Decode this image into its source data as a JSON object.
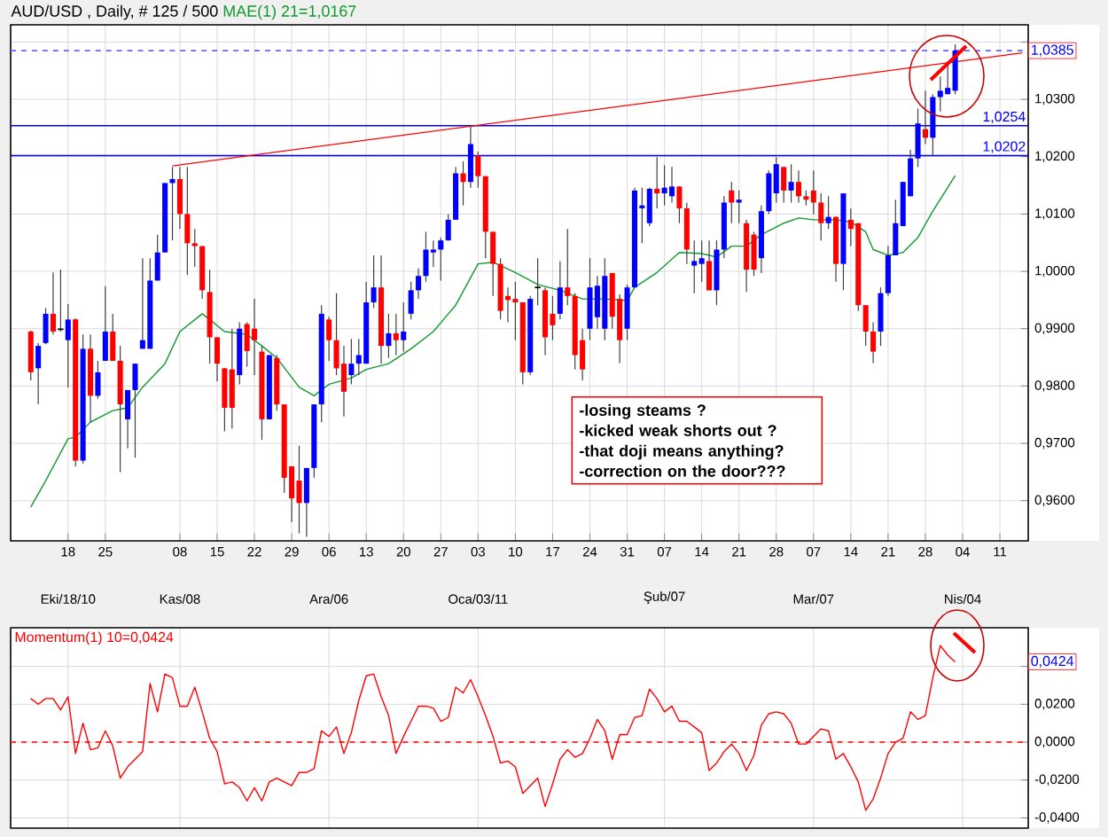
{
  "chart_data": [
    {
      "type": "candlestick",
      "title": "AUD/USD , Daily, # 125 / 500",
      "categories": [
        null,
        null,
        null,
        null,
        null,
        "18",
        null,
        null,
        null,
        null,
        "25",
        null,
        null,
        null,
        null,
        null,
        null,
        null,
        null,
        null,
        "08",
        null,
        null,
        null,
        null,
        "15",
        null,
        null,
        null,
        null,
        "22",
        null,
        null,
        null,
        null,
        "29",
        null,
        null,
        null,
        null,
        "06",
        null,
        null,
        null,
        null,
        "13",
        null,
        null,
        null,
        null,
        "20",
        null,
        null,
        null,
        null,
        "27",
        null,
        null,
        null,
        null,
        "03",
        null,
        null,
        null,
        null,
        "10",
        null,
        null,
        null,
        null,
        "17",
        null,
        null,
        null,
        null,
        "24",
        null,
        null,
        null,
        null,
        "31",
        null,
        null,
        null,
        null,
        "07",
        null,
        null,
        null,
        null,
        "14",
        null,
        null,
        null,
        null,
        "21",
        null,
        null,
        null,
        null,
        "28",
        null,
        null,
        null,
        null,
        "07",
        null,
        null,
        null,
        null,
        "14",
        null,
        null,
        null,
        null,
        "21",
        null,
        null,
        null,
        null,
        "28",
        null,
        null,
        null,
        null,
        "04",
        null,
        null,
        null,
        null,
        "11",
        null,
        null,
        null
      ],
      "ohlc": [
        [
          0.9895,
          0.9897,
          0.981,
          0.9824
        ],
        [
          0.9831,
          0.9875,
          0.9768,
          0.987
        ],
        [
          0.9875,
          0.9936,
          0.9873,
          0.9926
        ],
        [
          0.9926,
          0.9998,
          0.989,
          0.9895
        ],
        [
          0.9899,
          1.0003,
          0.9895,
          0.9899
        ],
        [
          0.988,
          0.9943,
          0.9798,
          0.9916
        ],
        [
          0.9916,
          0.9918,
          0.966,
          0.967
        ],
        [
          0.967,
          0.989,
          0.9665,
          0.9865
        ],
        [
          0.9865,
          0.989,
          0.9737,
          0.9783
        ],
        [
          0.9783,
          0.9844,
          0.9778,
          0.9824
        ],
        [
          0.9844,
          0.9974,
          0.9844,
          0.9895
        ],
        [
          0.9895,
          0.9926,
          0.9844,
          0.9844
        ],
        [
          0.9844,
          0.987,
          0.965,
          0.9768
        ],
        [
          0.9742,
          0.9793,
          0.9691,
          0.9793
        ],
        [
          0.9793,
          0.9839,
          0.9675,
          0.9839
        ],
        [
          0.9865,
          1.0023,
          0.9865,
          0.988
        ],
        [
          0.9865,
          1.0023,
          0.9865,
          0.9984
        ],
        [
          0.9984,
          1.0064,
          0.9984,
          1.0033
        ],
        [
          1.0033,
          1.0154,
          1.0033,
          1.0154
        ],
        [
          1.0154,
          1.0182,
          1.0054,
          1.0161
        ],
        [
          1.0161,
          1.0182,
          1.0074,
          1.01
        ],
        [
          1.01,
          1.0182,
          0.9994,
          1.0049
        ],
        [
          1.0049,
          1.0074,
          1.0008,
          1.0044
        ],
        [
          1.0044,
          1.0044,
          0.9952,
          0.9967
        ],
        [
          0.9964,
          1.0003,
          0.9839,
          0.9885
        ],
        [
          0.9885,
          0.9885,
          0.9808,
          0.9839
        ],
        [
          0.9831,
          0.9831,
          0.9721,
          0.9762
        ],
        [
          0.9829,
          0.99,
          0.9726,
          0.9762
        ],
        [
          0.9819,
          0.9911,
          0.9803,
          0.99
        ],
        [
          0.9908,
          0.9911,
          0.9834,
          0.9861
        ],
        [
          0.99,
          0.9952,
          0.9819,
          0.988
        ],
        [
          0.986,
          0.987,
          0.9706,
          0.9742
        ],
        [
          0.9742,
          0.9854,
          0.9742,
          0.9854
        ],
        [
          0.9849,
          0.9854,
          0.9757,
          0.9768
        ],
        [
          0.9768,
          0.9768,
          0.9614,
          0.964
        ],
        [
          0.966,
          0.966,
          0.9563,
          0.9604
        ],
        [
          0.9635,
          0.9696,
          0.9543,
          0.9596
        ],
        [
          0.9596,
          0.9657,
          0.9537,
          0.9657
        ],
        [
          0.9657,
          0.9768,
          0.964,
          0.9768
        ],
        [
          0.9768,
          0.9941,
          0.9737,
          0.9926
        ],
        [
          0.9916,
          0.9921,
          0.9844,
          0.988
        ],
        [
          0.988,
          0.9962,
          0.9819,
          0.9831
        ],
        [
          0.9839,
          0.987,
          0.9747,
          0.979
        ],
        [
          0.9819,
          0.9882,
          0.9803,
          0.9839
        ],
        [
          0.9839,
          0.9882,
          0.9819,
          0.9854
        ],
        [
          0.9839,
          0.9982,
          0.9839,
          0.9946
        ],
        [
          0.9946,
          1.0028,
          0.9936,
          0.9972
        ],
        [
          0.9972,
          1.0028,
          0.9839,
          0.987
        ],
        [
          0.987,
          0.9926,
          0.9849,
          0.9892
        ],
        [
          0.9892,
          0.9926,
          0.9854,
          0.988
        ],
        [
          0.988,
          0.9946,
          0.986,
          0.9895
        ],
        [
          0.9926,
          0.9982,
          0.9916,
          0.9967
        ],
        [
          0.9967,
          1.0005,
          0.9952,
          0.9992
        ],
        [
          0.9992,
          1.0069,
          0.9982,
          1.0038
        ],
        [
          1.0033,
          1.0054,
          1.0008,
          1.0038
        ],
        [
          1.0038,
          1.0059,
          0.9984,
          1.0054
        ],
        [
          1.0054,
          1.01,
          1.0054,
          1.009
        ],
        [
          1.009,
          1.0182,
          1.009,
          1.0171
        ],
        [
          1.0171,
          1.0192,
          1.0115,
          1.0156
        ],
        [
          1.0156,
          1.0253,
          1.0146,
          1.0222
        ],
        [
          1.0202,
          1.0209,
          1.0146,
          1.0166
        ],
        [
          1.0166,
          1.0166,
          1.0023,
          1.0069
        ],
        [
          1.0069,
          1.0069,
          0.9957,
          1.0013
        ],
        [
          1.0013,
          1.0023,
          0.9916,
          0.9931
        ],
        [
          0.9957,
          0.9972,
          0.9911,
          0.995
        ],
        [
          0.9952,
          0.9982,
          0.988,
          0.9946
        ],
        [
          0.9946,
          0.9946,
          0.9803,
          0.9824
        ],
        [
          0.9824,
          0.9957,
          0.9819,
          0.9952
        ],
        [
          0.9972,
          1.0023,
          0.9941,
          0.9972
        ],
        [
          0.9967,
          0.9972,
          0.9854,
          0.9885
        ],
        [
          0.9926,
          0.9957,
          0.988,
          0.9906
        ],
        [
          0.9926,
          1.0018,
          0.9916,
          0.9972
        ],
        [
          0.9972,
          1.0074,
          0.9941,
          0.9957
        ],
        [
          0.9957,
          0.9962,
          0.9829,
          0.9854
        ],
        [
          0.988,
          0.99,
          0.981,
          0.9829
        ],
        [
          0.99,
          1.0023,
          0.988,
          0.9972
        ],
        [
          0.992,
          0.9992,
          0.99,
          0.9975
        ],
        [
          0.99,
          1.0023,
          0.988,
          0.9992
        ],
        [
          0.9997,
          0.9997,
          0.99,
          0.9921
        ],
        [
          0.9952,
          0.996,
          0.984,
          0.988
        ],
        [
          0.99,
          0.9977,
          0.988,
          0.9972
        ],
        [
          0.9972,
          1.0146,
          0.9972,
          1.0141
        ],
        [
          1.011,
          1.0146,
          1.0049,
          1.0115
        ],
        [
          1.0084,
          1.0146,
          1.0079,
          1.0144
        ],
        [
          1.0144,
          1.0199,
          1.011,
          1.0136
        ],
        [
          1.0136,
          1.0185,
          1.0115,
          1.0146
        ],
        [
          1.0131,
          1.0182,
          1.012,
          1.0148
        ],
        [
          1.0148,
          1.0148,
          1.0084,
          1.011
        ],
        [
          1.011,
          1.012,
          1.0013,
          1.0038
        ],
        [
          1.001,
          1.0054,
          0.9962,
          1.0018
        ],
        [
          1.0013,
          1.0054,
          0.9982,
          1.0023
        ],
        [
          1.0018,
          1.0054,
          0.9967,
          0.9967
        ],
        [
          0.9967,
          1.0054,
          0.9941,
          1.0038
        ],
        [
          1.0038,
          1.0131,
          1.0023,
          1.012
        ],
        [
          1.0141,
          1.0156,
          1.0084,
          1.012
        ],
        [
          1.012,
          1.0141,
          1.0084,
          1.0125
        ],
        [
          1.0084,
          1.009,
          0.9964,
          1.0003
        ],
        [
          1.0064,
          1.0069,
          0.9992,
          1.0003
        ],
        [
          1.0023,
          1.0115,
          0.9997,
          1.0105
        ],
        [
          1.0105,
          1.0176,
          1.01,
          1.0171
        ],
        [
          1.0136,
          1.0199,
          1.012,
          1.0187
        ],
        [
          1.0182,
          1.0182,
          1.012,
          1.0141
        ],
        [
          1.0141,
          1.0187,
          1.012,
          1.0156
        ],
        [
          1.0156,
          1.0176,
          1.012,
          1.0131
        ],
        [
          1.0131,
          1.0141,
          1.0115,
          1.0125
        ],
        [
          1.0141,
          1.0176,
          1.01,
          1.012
        ],
        [
          1.012,
          1.0136,
          1.0054,
          1.0084
        ],
        [
          1.0084,
          1.0131,
          1.0074,
          1.0095
        ],
        [
          1.0095,
          1.0095,
          0.9982,
          1.0013
        ],
        [
          1.0013,
          1.0136,
          0.9967,
          1.0136
        ],
        [
          1.009,
          1.011,
          1.0044,
          1.0074
        ],
        [
          1.0084,
          1.0084,
          0.9931,
          0.9941
        ],
        [
          0.9941,
          0.9941,
          0.987,
          0.9895
        ],
        [
          0.9895,
          0.9911,
          0.984,
          0.986
        ],
        [
          0.9895,
          0.9972,
          0.987,
          0.9962
        ],
        [
          0.9962,
          1.0044,
          0.9957,
          1.0028
        ],
        [
          1.0028,
          1.0125,
          1.0028,
          1.0084
        ],
        [
          1.0079,
          1.0156,
          1.0079,
          1.0156
        ],
        [
          1.0131,
          1.0212,
          1.0131,
          1.0197
        ],
        [
          1.0197,
          1.0284,
          1.0182,
          1.0258
        ],
        [
          1.0248,
          1.0315,
          1.0222,
          1.0233
        ],
        [
          1.0233,
          1.0309,
          1.0202,
          1.0304
        ],
        [
          1.0304,
          1.034,
          1.0279,
          1.0315
        ],
        [
          1.0309,
          1.0366,
          1.0309,
          1.032
        ],
        [
          1.0315,
          1.0396,
          1.0309,
          1.0385
        ],
        null,
        null,
        null,
        null,
        null,
        null,
        null,
        null,
        null
      ],
      "colors": [
        "#ff0000",
        "#0000ff",
        "#0000ff",
        "#ff0000",
        "#000000",
        "#0000ff",
        "#ff0000",
        "#0000ff",
        "#ff0000",
        "#0000ff",
        "#0000ff",
        "#ff0000",
        "#ff0000",
        "#0000ff",
        "#0000ff",
        "#0000ff",
        "#0000ff",
        "#0000ff",
        "#0000ff",
        "#0000ff",
        "#ff0000",
        "#ff0000",
        "#ff0000",
        "#ff0000",
        "#ff0000",
        "#ff0000",
        "#ff0000",
        "#ff0000",
        "#0000ff",
        "#ff0000",
        "#ff0000",
        "#ff0000",
        "#0000ff",
        "#ff0000",
        "#ff0000",
        "#ff0000",
        "#ff0000",
        "#0000ff",
        "#0000ff",
        "#0000ff",
        "#ff0000",
        "#ff0000",
        "#ff0000",
        "#0000ff",
        "#0000ff",
        "#0000ff",
        "#0000ff",
        "#ff0000",
        "#0000ff",
        "#ff0000",
        "#0000ff",
        "#0000ff",
        "#0000ff",
        "#0000ff",
        "#0000ff",
        "#0000ff",
        "#0000ff",
        "#0000ff",
        "#ff0000",
        "#0000ff",
        "#ff0000",
        "#ff0000",
        "#ff0000",
        "#ff0000",
        "#ff0000",
        "#ff0000",
        "#ff0000",
        "#0000ff",
        "#000000",
        "#ff0000",
        "#ff0000",
        "#0000ff",
        "#ff0000",
        "#ff0000",
        "#ff0000",
        "#0000ff",
        "#0000ff",
        "#0000ff",
        "#ff0000",
        "#ff0000",
        "#0000ff",
        "#0000ff",
        "#0000ff",
        "#0000ff",
        "#ff0000",
        "#0000ff",
        "#0000ff",
        "#ff0000",
        "#ff0000",
        "#0000ff",
        "#0000ff",
        "#ff0000",
        "#0000ff",
        "#0000ff",
        "#ff0000",
        "#0000ff",
        "#ff0000",
        "#ff0000",
        "#0000ff",
        "#0000ff",
        "#0000ff",
        "#ff0000",
        "#0000ff",
        "#ff0000",
        "#ff0000",
        "#ff0000",
        "#ff0000",
        "#0000ff",
        "#ff0000",
        "#0000ff",
        "#ff0000",
        "#ff0000",
        "#ff0000",
        "#ff0000",
        "#0000ff",
        "#0000ff",
        "#0000ff",
        "#0000ff",
        "#0000ff",
        "#0000ff",
        "#ff0000",
        "#0000ff",
        "#0000ff",
        "#0000ff",
        "#0000ff",
        null,
        null,
        null,
        null,
        null,
        null,
        null,
        null,
        null
      ],
      "series": [
        {
          "type": "line",
          "name": "MAE(1) 21=1,0167",
          "color": "#109a2c",
          "values": [
            0.9589,
            null,
            0.9635,
            null,
            null,
            0.9708,
            0.9711,
            null,
            0.9737,
            null,
            null,
            0.9757,
            null,
            0.9762,
            null,
            0.9798,
            null,
            null,
            0.9839,
            null,
            0.9895,
            null,
            null,
            0.9926,
            0.9916,
            null,
            0.9895,
            null,
            null,
            0.989,
            null,
            0.987,
            null,
            0.9849,
            null,
            null,
            0.9798,
            null,
            0.9783,
            null,
            0.9803,
            null,
            null,
            0.9814,
            null,
            0.9829,
            null,
            null,
            0.9839,
            null,
            null,
            0.9865,
            null,
            null,
            0.9895,
            null,
            null,
            0.9941,
            null,
            null,
            1.0013,
            null,
            1.0016,
            null,
            null,
            0.9998,
            null,
            null,
            0.9977,
            null,
            null,
            0.9967,
            null,
            null,
            0.9952,
            null,
            null,
            0.9952,
            null,
            null,
            0.9949,
            0.9972,
            null,
            null,
            0.9998,
            null,
            null,
            1.0033,
            null,
            null,
            1.0031,
            null,
            1.0025,
            null,
            1.0044,
            null,
            1.0044,
            null,
            1.0064,
            null,
            null,
            1.0084,
            null,
            1.0093,
            null,
            1.009,
            null,
            null,
            1.009,
            null,
            1.0086,
            null,
            1.0069,
            1.0038,
            null,
            1.0028,
            null,
            1.0033,
            null,
            1.0059,
            null,
            1.0105,
            null,
            null,
            1.0167,
            null,
            null,
            null,
            null,
            null,
            null,
            null,
            null,
            null
          ]
        },
        {
          "type": "line",
          "color": "#ff0000",
          "values": [
            null,
            null,
            null,
            null,
            null,
            null,
            null,
            null,
            null,
            null,
            null,
            null,
            null,
            null,
            null,
            null,
            null,
            null,
            null,
            1.0184,
            null,
            null,
            null,
            null,
            null,
            null,
            null,
            null,
            null,
            null,
            null,
            null,
            null,
            null,
            null,
            null,
            null,
            null,
            null,
            null,
            null,
            null,
            null,
            null,
            null,
            null,
            null,
            null,
            null,
            null,
            null,
            null,
            null,
            null,
            null,
            null,
            null,
            null,
            null,
            null,
            null,
            null,
            null,
            null,
            null,
            null,
            null,
            null,
            null,
            null,
            null,
            null,
            null,
            null,
            null,
            null,
            null,
            null,
            null,
            null,
            null,
            null,
            null,
            null,
            null,
            null,
            null,
            null,
            null,
            null,
            null,
            null,
            null,
            null,
            null,
            null,
            null,
            null,
            null,
            null,
            null,
            null,
            null,
            null,
            null,
            null,
            null,
            null,
            null,
            null,
            null,
            null,
            null,
            null,
            null,
            null,
            null,
            null,
            null,
            null,
            null,
            null,
            null,
            null,
            null,
            null,
            null,
            null,
            null,
            null,
            null,
            null,
            null,
            1.0381
          ]
        }
      ],
      "ylim": [
        0.953,
        1.043
      ],
      "yticks": [
        {
          "value": 0.96,
          "label": "0,9600"
        },
        {
          "value": 0.97,
          "label": "0,9700"
        },
        {
          "value": 0.98,
          "label": "0,9800"
        },
        {
          "value": 0.99,
          "label": "0,9900"
        },
        {
          "value": 1.0,
          "label": "1,0000"
        },
        {
          "value": 1.01,
          "label": "1,0100"
        },
        {
          "value": 1.02,
          "label": "1,0200"
        },
        {
          "value": 1.03,
          "label": "1,0300"
        },
        {
          "value": 1.04,
          "label": null
        }
      ],
      "ref_lines": [
        {
          "axis": "y",
          "value": 1.0385,
          "label": "1,0385",
          "color": "#6666ff",
          "line_style": "dashed"
        },
        {
          "axis": "y",
          "value": 1.0254,
          "label": "1,0254",
          "color": "#0000ff"
        },
        {
          "axis": "y",
          "value": 1.0202,
          "label": "1,0202",
          "color": "#0000ff"
        }
      ],
      "annotations": [
        "-losing steams ?",
        "-kicked  weak shorts out ?",
        "-that doji means anything?",
        "-correction on the door???"
      ],
      "grid": true
    },
    {
      "type": "line",
      "categories": [
        null,
        null,
        null,
        null,
        null,
        "Eki/18/10",
        null,
        null,
        null,
        null,
        null,
        null,
        null,
        null,
        null,
        null,
        null,
        null,
        null,
        null,
        "Kas/08",
        null,
        null,
        null,
        null,
        null,
        null,
        null,
        null,
        null,
        null,
        null,
        null,
        null,
        null,
        null,
        null,
        null,
        null,
        null,
        "Ara/06",
        null,
        null,
        null,
        null,
        null,
        null,
        null,
        null,
        null,
        null,
        null,
        null,
        null,
        null,
        null,
        null,
        null,
        null,
        null,
        "Oca/03/11",
        null,
        null,
        null,
        null,
        null,
        null,
        null,
        null,
        null,
        null,
        null,
        null,
        null,
        null,
        null,
        null,
        null,
        null,
        null,
        null,
        null,
        null,
        null,
        null,
        "Şub/07",
        null,
        null,
        null,
        null,
        null,
        null,
        null,
        null,
        null,
        null,
        null,
        null,
        null,
        null,
        null,
        null,
        null,
        null,
        null,
        "Mar/07",
        null,
        null,
        null,
        null,
        null,
        null,
        null,
        null,
        null,
        null,
        null,
        null,
        null,
        null,
        null,
        null,
        null,
        null,
        null,
        "Nis/04",
        null,
        null,
        null,
        null,
        null,
        null,
        null,
        null
      ],
      "series": [
        {
          "name": "Momentum(1) 10=0,0424",
          "color": "#ff0000",
          "values": [
            0.023,
            0.02,
            0.023,
            0.023,
            0.017,
            0.024,
            -0.006,
            0.01,
            -0.004,
            -0.003,
            0.006,
            -0.002,
            -0.019,
            -0.013,
            -0.009,
            -0.005,
            0.031,
            0.016,
            0.036,
            0.034,
            0.019,
            0.019,
            0.029,
            0.016,
            0.002,
            -0.005,
            -0.022,
            -0.021,
            -0.024,
            -0.031,
            -0.024,
            -0.031,
            -0.021,
            -0.019,
            -0.021,
            -0.023,
            -0.016,
            -0.016,
            -0.014,
            0.006,
            0.003,
            0.008,
            -0.006,
            0.005,
            0.022,
            0.035,
            0.036,
            0.024,
            0.014,
            -0.006,
            0.003,
            0.011,
            0.019,
            0.019,
            0.018,
            0.011,
            0.013,
            0.029,
            0.026,
            0.033,
            0.024,
            0.014,
            0.003,
            -0.011,
            -0.01,
            -0.013,
            -0.027,
            -0.023,
            -0.019,
            -0.034,
            -0.022,
            -0.009,
            -0.004,
            -0.008,
            -0.006,
            0.002,
            0.012,
            0.006,
            -0.009,
            0.004,
            0.004,
            0.013,
            0.014,
            0.028,
            0.023,
            0.016,
            0.019,
            0.011,
            0.011,
            0.008,
            0.005,
            -0.015,
            -0.011,
            -0.005,
            -0.001,
            -0.006,
            -0.015,
            -0.007,
            0.009,
            0.015,
            0.016,
            0.015,
            0.01,
            -0.001,
            -0.001,
            0.003,
            0.007,
            0.006,
            -0.009,
            -0.006,
            -0.013,
            -0.021,
            -0.036,
            -0.03,
            -0.019,
            -0.006,
            0.0,
            0.002,
            0.016,
            0.012,
            0.014,
            0.034,
            0.051,
            0.046,
            0.0424,
            null,
            null,
            null,
            null,
            null,
            null,
            null,
            null,
            null
          ]
        }
      ],
      "ylim": [
        -0.0454,
        0.0604
      ],
      "yticks": [
        {
          "value": -0.04,
          "label": "-0,0400"
        },
        {
          "value": -0.02,
          "label": "-0,0200"
        },
        {
          "value": 0,
          "label": "0,0000"
        },
        {
          "value": 0.02,
          "label": "0,0200"
        },
        {
          "value": 0.04,
          "label": null
        }
      ],
      "ref_lines": [
        {
          "axis": "y",
          "value": 0,
          "color": "#ff0000",
          "line_style": "dashed"
        }
      ],
      "annotations": [
        {
          "text": "0,0424",
          "y": 0.0424
        }
      ],
      "grid": true
    }
  ]
}
